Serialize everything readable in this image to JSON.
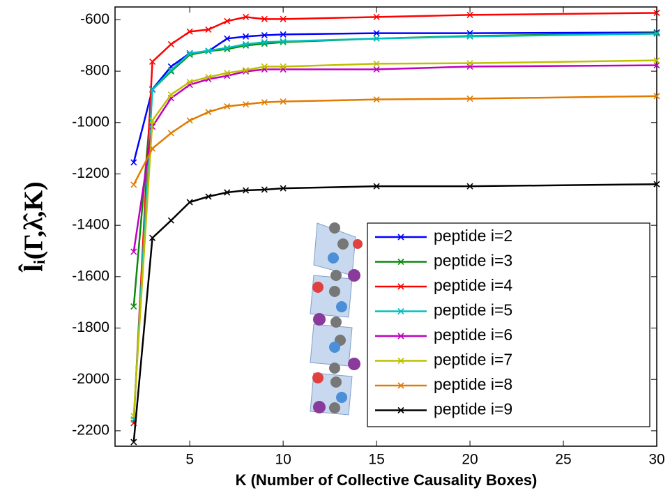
{
  "chart_data": {
    "type": "line",
    "xlabel": "K (Number of Collective Causality Boxes)",
    "ylabel": "l̂ᵢ(Γ,λ̂,K)",
    "x": [
      2,
      3,
      4,
      5,
      6,
      7,
      8,
      9,
      10,
      15,
      20,
      30
    ],
    "xlim": [
      1,
      30
    ],
    "xticks": [
      5,
      10,
      15,
      20,
      25,
      30
    ],
    "ylim": [
      -2260,
      -550
    ],
    "yticks": [
      -600,
      -800,
      -1000,
      -1200,
      -1400,
      -1600,
      -1800,
      -2000,
      -2200
    ],
    "grid": false,
    "legend": "lower right",
    "series": [
      {
        "name": "peptide i=2",
        "color": "#0000ff",
        "values": [
          -1155,
          -870,
          -782,
          -730,
          -722,
          -673,
          -665,
          -660,
          -657,
          -652,
          -652,
          -649
        ]
      },
      {
        "name": "peptide i=3",
        "color": "#0a8a0a",
        "values": [
          -1716,
          -872,
          -801,
          -736,
          -722,
          -714,
          -700,
          -693,
          -687,
          -673,
          -663,
          -652
        ]
      },
      {
        "name": "peptide i=4",
        "color": "#ff0000",
        "values": [
          -2170,
          -763,
          -695,
          -646,
          -638,
          -605,
          -589,
          -597,
          -597,
          -589,
          -581,
          -573
        ]
      },
      {
        "name": "peptide i=5",
        "color": "#00bfbf",
        "values": [
          -2156,
          -872,
          -796,
          -731,
          -720,
          -709,
          -695,
          -687,
          -684,
          -673,
          -665,
          -654
        ]
      },
      {
        "name": "peptide i=6",
        "color": "#bf00bf",
        "values": [
          -1503,
          -1016,
          -905,
          -853,
          -831,
          -818,
          -801,
          -793,
          -793,
          -793,
          -782,
          -777
        ]
      },
      {
        "name": "peptide i=7",
        "color": "#bfbf00",
        "values": [
          -2143,
          -992,
          -891,
          -842,
          -823,
          -807,
          -796,
          -782,
          -782,
          -771,
          -769,
          -758
        ]
      },
      {
        "name": "peptide i=8",
        "color": "#e07b00",
        "values": [
          -1242,
          -1101,
          -1041,
          -992,
          -959,
          -937,
          -929,
          -921,
          -918,
          -910,
          -907,
          -897
        ]
      },
      {
        "name": "peptide i=9",
        "color": "#000000",
        "values": [
          -2244,
          -1449,
          -1381,
          -1310,
          -1288,
          -1272,
          -1264,
          -1261,
          -1256,
          -1248,
          -1248,
          -1240
        ]
      }
    ]
  }
}
